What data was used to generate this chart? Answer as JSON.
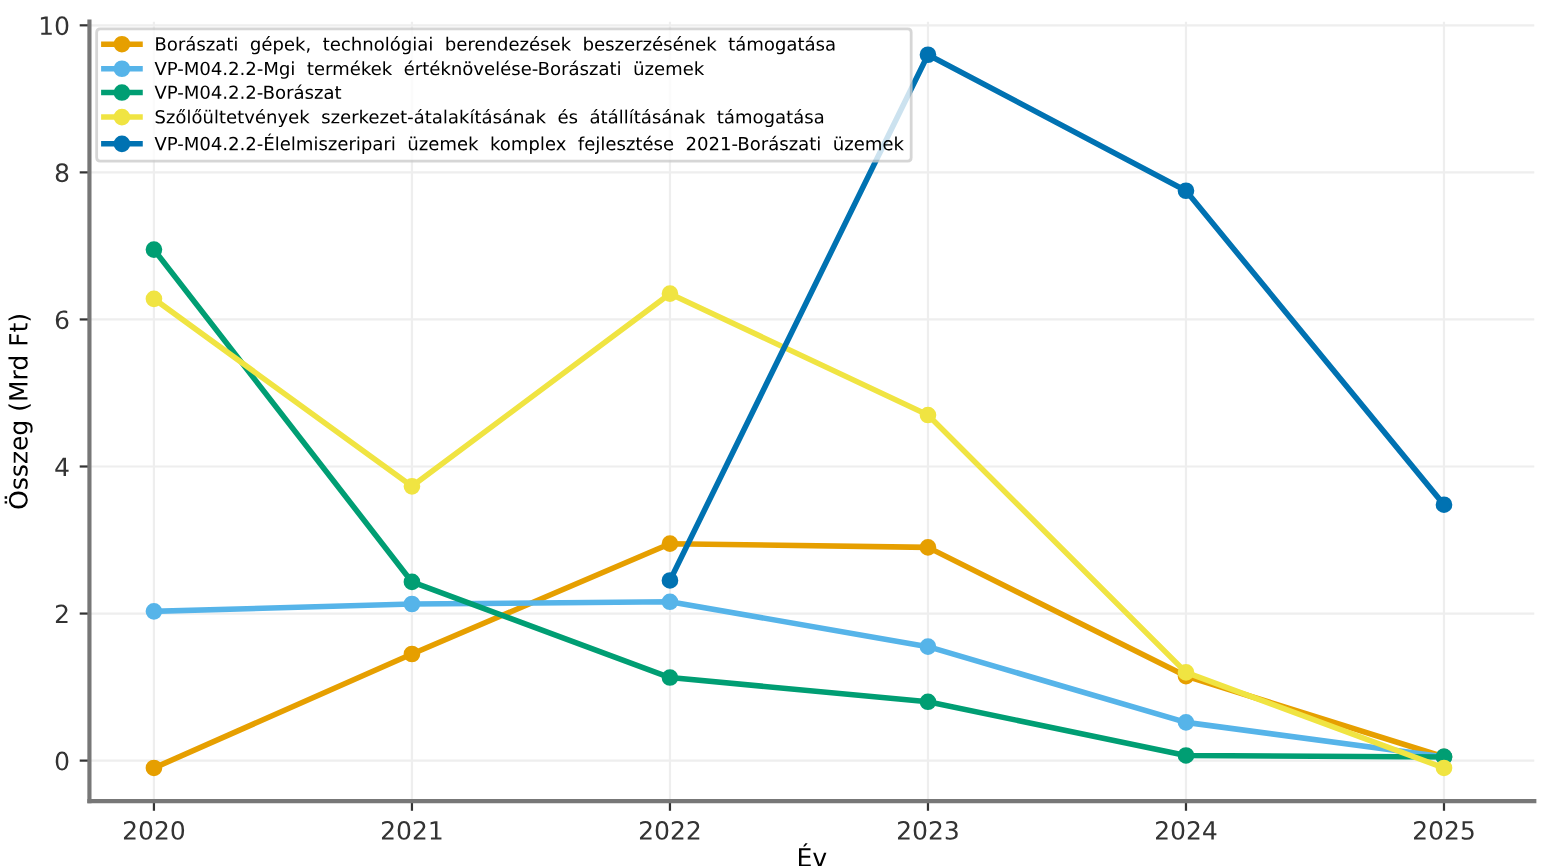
{
  "chart_data": {
    "type": "line",
    "xlabel": "Év",
    "ylabel": "Összeg (Mrd Ft)",
    "x": [
      2020,
      2021,
      2022,
      2023,
      2024,
      2025
    ],
    "xlim": [
      2019.75,
      2025.35
    ],
    "xticks": [
      2020,
      2021,
      2022,
      2023,
      2024,
      2025
    ],
    "ylim": [
      -0.55,
      10.05
    ],
    "yticks": [
      0,
      2,
      4,
      6,
      8,
      10
    ],
    "grid": true,
    "legend": "top left",
    "marker": "circle",
    "line_style": "solid",
    "series": [
      {
        "name": "Borászati  gépek,  technológiai  berendezések  beszerzésének  támogatása",
        "color": "#e69f00",
        "values": [
          -0.1,
          1.45,
          2.95,
          2.9,
          1.15,
          0.05
        ]
      },
      {
        "name": "VP-M04.2.2-Mgi  termékek  értéknövelése-Borászati  üzemek",
        "color": "#56b4e9",
        "values": [
          2.03,
          2.13,
          2.16,
          1.55,
          0.52,
          0.05
        ]
      },
      {
        "name": "VP-M04.2.2-Borászat",
        "color": "#009e73",
        "values": [
          6.95,
          2.43,
          1.13,
          0.8,
          0.07,
          0.05
        ]
      },
      {
        "name": "Szőlőültetvények  szerkezet-átalakításának  és  átállításának  támogatása",
        "color": "#f0e442",
        "values": [
          6.28,
          3.73,
          6.35,
          4.7,
          1.2,
          -0.1
        ]
      },
      {
        "name": "VP-M04.2.2-Élelmiszeripari  üzemek  komplex  fejlesztése  2021-Borászati  üzemek",
        "color": "#0072b2",
        "values": [
          null,
          null,
          2.45,
          9.6,
          7.75,
          3.48
        ]
      }
    ]
  }
}
